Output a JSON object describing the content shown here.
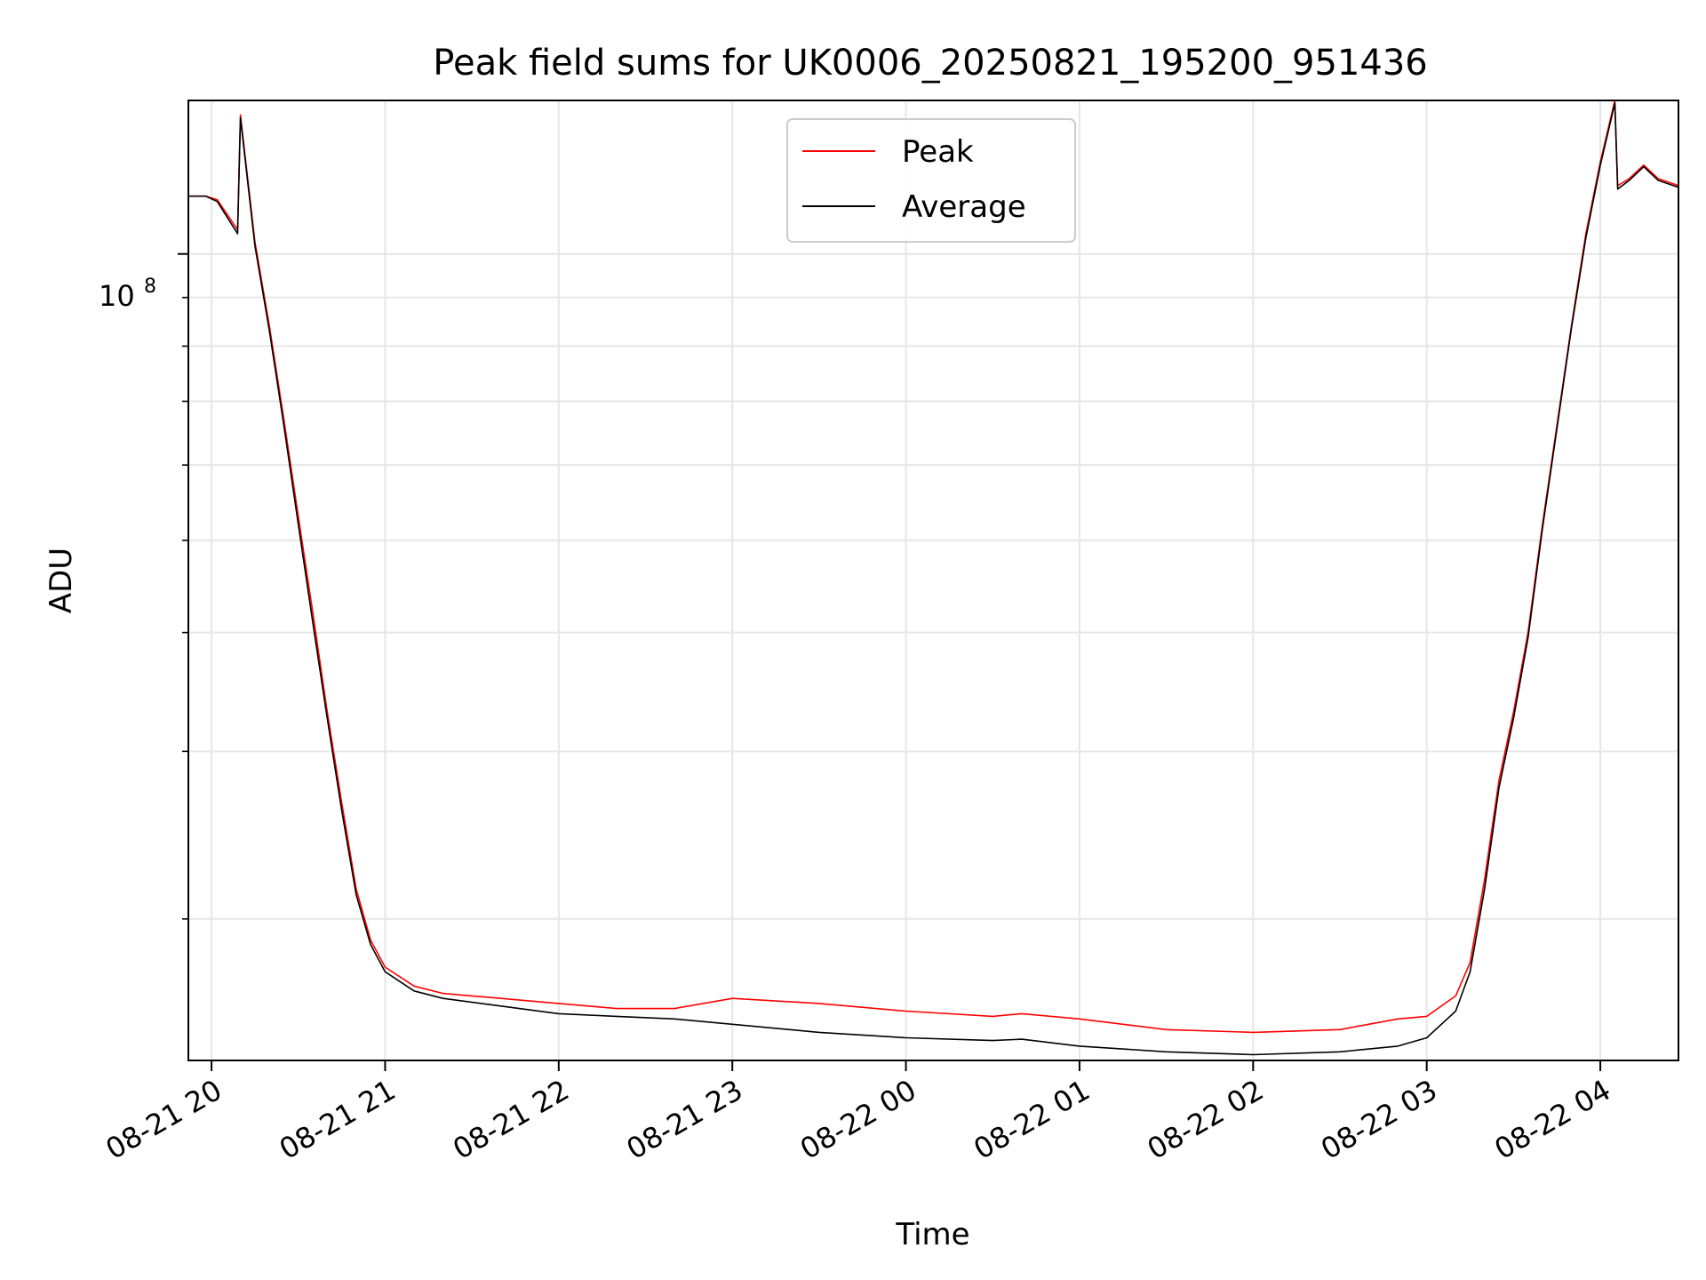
{
  "chart_data": {
    "type": "line",
    "title": "Peak field sums for UK0006_20250821_195200_951436",
    "xlabel": "Time",
    "ylabel": "ADU",
    "y_scale": "log",
    "y_major_tick": {
      "label_base": "10",
      "label_exp": "8",
      "value": 100000000
    },
    "y_minor_ticks": [
      20000000,
      30000000,
      40000000,
      50000000,
      60000000,
      70000000,
      80000000,
      90000000
    ],
    "ylim": [
      14200000,
      145000000
    ],
    "xlim": [
      "2025-08-21 19:52",
      "2025-08-22 04:27"
    ],
    "x_ticks": [
      {
        "t": "2025-08-21 20:00",
        "label": "08-21 20"
      },
      {
        "t": "2025-08-21 21:00",
        "label": "08-21 21"
      },
      {
        "t": "2025-08-21 22:00",
        "label": "08-21 22"
      },
      {
        "t": "2025-08-21 23:00",
        "label": "08-21 23"
      },
      {
        "t": "2025-08-22 00:00",
        "label": "08-22 00"
      },
      {
        "t": "2025-08-22 01:00",
        "label": "08-22 01"
      },
      {
        "t": "2025-08-22 02:00",
        "label": "08-22 02"
      },
      {
        "t": "2025-08-22 03:00",
        "label": "08-22 03"
      },
      {
        "t": "2025-08-22 04:00",
        "label": "08-22 04"
      }
    ],
    "grid": true,
    "legend_position": "top-center",
    "series": [
      {
        "name": "Peak",
        "color": "#ff0000",
        "points": [
          [
            "2025-08-21 19:52",
            115000000
          ],
          [
            "2025-08-21 19:58",
            115000000
          ],
          [
            "2025-08-21 20:02",
            114000000
          ],
          [
            "2025-08-21 20:09",
            106000000
          ],
          [
            "2025-08-21 20:10",
            140000000
          ],
          [
            "2025-08-21 20:15",
            103000000
          ],
          [
            "2025-08-21 20:20",
            84000000
          ],
          [
            "2025-08-21 20:25",
            67000000
          ],
          [
            "2025-08-21 20:30",
            53000000
          ],
          [
            "2025-08-21 20:35",
            42000000
          ],
          [
            "2025-08-21 20:40",
            33000000
          ],
          [
            "2025-08-21 20:45",
            26500000
          ],
          [
            "2025-08-21 20:50",
            21500000
          ],
          [
            "2025-08-21 20:55",
            19000000
          ],
          [
            "2025-08-21 21:00",
            17800000
          ],
          [
            "2025-08-21 21:10",
            17000000
          ],
          [
            "2025-08-21 21:20",
            16700000
          ],
          [
            "2025-08-21 21:40",
            16500000
          ],
          [
            "2025-08-21 22:00",
            16300000
          ],
          [
            "2025-08-21 22:20",
            16100000
          ],
          [
            "2025-08-21 22:40",
            16100000
          ],
          [
            "2025-08-21 23:00",
            16500000
          ],
          [
            "2025-08-21 23:30",
            16300000
          ],
          [
            "2025-08-22 00:00",
            16000000
          ],
          [
            "2025-08-22 00:30",
            15800000
          ],
          [
            "2025-08-22 00:40",
            15900000
          ],
          [
            "2025-08-22 01:00",
            15700000
          ],
          [
            "2025-08-22 01:30",
            15300000
          ],
          [
            "2025-08-22 02:00",
            15200000
          ],
          [
            "2025-08-22 02:30",
            15300000
          ],
          [
            "2025-08-22 02:50",
            15700000
          ],
          [
            "2025-08-22 03:00",
            15800000
          ],
          [
            "2025-08-22 03:10",
            16600000
          ],
          [
            "2025-08-22 03:15",
            18000000
          ],
          [
            "2025-08-22 03:20",
            22000000
          ],
          [
            "2025-08-22 03:25",
            28000000
          ],
          [
            "2025-08-22 03:30",
            33000000
          ],
          [
            "2025-08-22 03:35",
            40000000
          ],
          [
            "2025-08-22 03:40",
            52000000
          ],
          [
            "2025-08-22 03:45",
            66000000
          ],
          [
            "2025-08-22 03:50",
            84000000
          ],
          [
            "2025-08-22 03:55",
            105000000
          ],
          [
            "2025-08-22 04:00",
            125000000
          ],
          [
            "2025-08-22 04:05",
            145000000
          ],
          [
            "2025-08-22 04:06",
            118000000
          ],
          [
            "2025-08-22 04:10",
            120000000
          ],
          [
            "2025-08-22 04:15",
            124000000
          ],
          [
            "2025-08-22 04:20",
            120000000
          ],
          [
            "2025-08-22 04:27",
            118000000
          ]
        ]
      },
      {
        "name": "Average",
        "color": "#000000",
        "points": [
          [
            "2025-08-21 19:52",
            115000000
          ],
          [
            "2025-08-21 19:58",
            115000000
          ],
          [
            "2025-08-21 20:02",
            113500000
          ],
          [
            "2025-08-21 20:09",
            105000000
          ],
          [
            "2025-08-21 20:10",
            139000000
          ],
          [
            "2025-08-21 20:15",
            102000000
          ],
          [
            "2025-08-21 20:20",
            83000000
          ],
          [
            "2025-08-21 20:25",
            66000000
          ],
          [
            "2025-08-21 20:30",
            52000000
          ],
          [
            "2025-08-21 20:35",
            41000000
          ],
          [
            "2025-08-21 20:40",
            32500000
          ],
          [
            "2025-08-21 20:45",
            26000000
          ],
          [
            "2025-08-21 20:50",
            21200000
          ],
          [
            "2025-08-21 20:55",
            18800000
          ],
          [
            "2025-08-21 21:00",
            17600000
          ],
          [
            "2025-08-21 21:10",
            16800000
          ],
          [
            "2025-08-21 21:20",
            16500000
          ],
          [
            "2025-08-21 21:40",
            16200000
          ],
          [
            "2025-08-21 22:00",
            15900000
          ],
          [
            "2025-08-21 22:20",
            15800000
          ],
          [
            "2025-08-21 22:40",
            15700000
          ],
          [
            "2025-08-21 23:00",
            15500000
          ],
          [
            "2025-08-21 23:30",
            15200000
          ],
          [
            "2025-08-22 00:00",
            15000000
          ],
          [
            "2025-08-22 00:30",
            14900000
          ],
          [
            "2025-08-22 00:40",
            14950000
          ],
          [
            "2025-08-22 01:00",
            14700000
          ],
          [
            "2025-08-22 01:30",
            14500000
          ],
          [
            "2025-08-22 02:00",
            14400000
          ],
          [
            "2025-08-22 02:30",
            14500000
          ],
          [
            "2025-08-22 02:50",
            14700000
          ],
          [
            "2025-08-22 03:00",
            15000000
          ],
          [
            "2025-08-22 03:10",
            16000000
          ],
          [
            "2025-08-22 03:15",
            17600000
          ],
          [
            "2025-08-22 03:20",
            21500000
          ],
          [
            "2025-08-22 03:25",
            27500000
          ],
          [
            "2025-08-22 03:30",
            32500000
          ],
          [
            "2025-08-22 03:35",
            39500000
          ],
          [
            "2025-08-22 03:40",
            51500000
          ],
          [
            "2025-08-22 03:45",
            65500000
          ],
          [
            "2025-08-22 03:50",
            83500000
          ],
          [
            "2025-08-22 03:55",
            104000000
          ],
          [
            "2025-08-22 04:00",
            124000000
          ],
          [
            "2025-08-22 04:05",
            144000000
          ],
          [
            "2025-08-22 04:06",
            117000000
          ],
          [
            "2025-08-22 04:10",
            119500000
          ],
          [
            "2025-08-22 04:15",
            123500000
          ],
          [
            "2025-08-22 04:20",
            119500000
          ],
          [
            "2025-08-22 04:27",
            117500000
          ]
        ]
      }
    ]
  }
}
